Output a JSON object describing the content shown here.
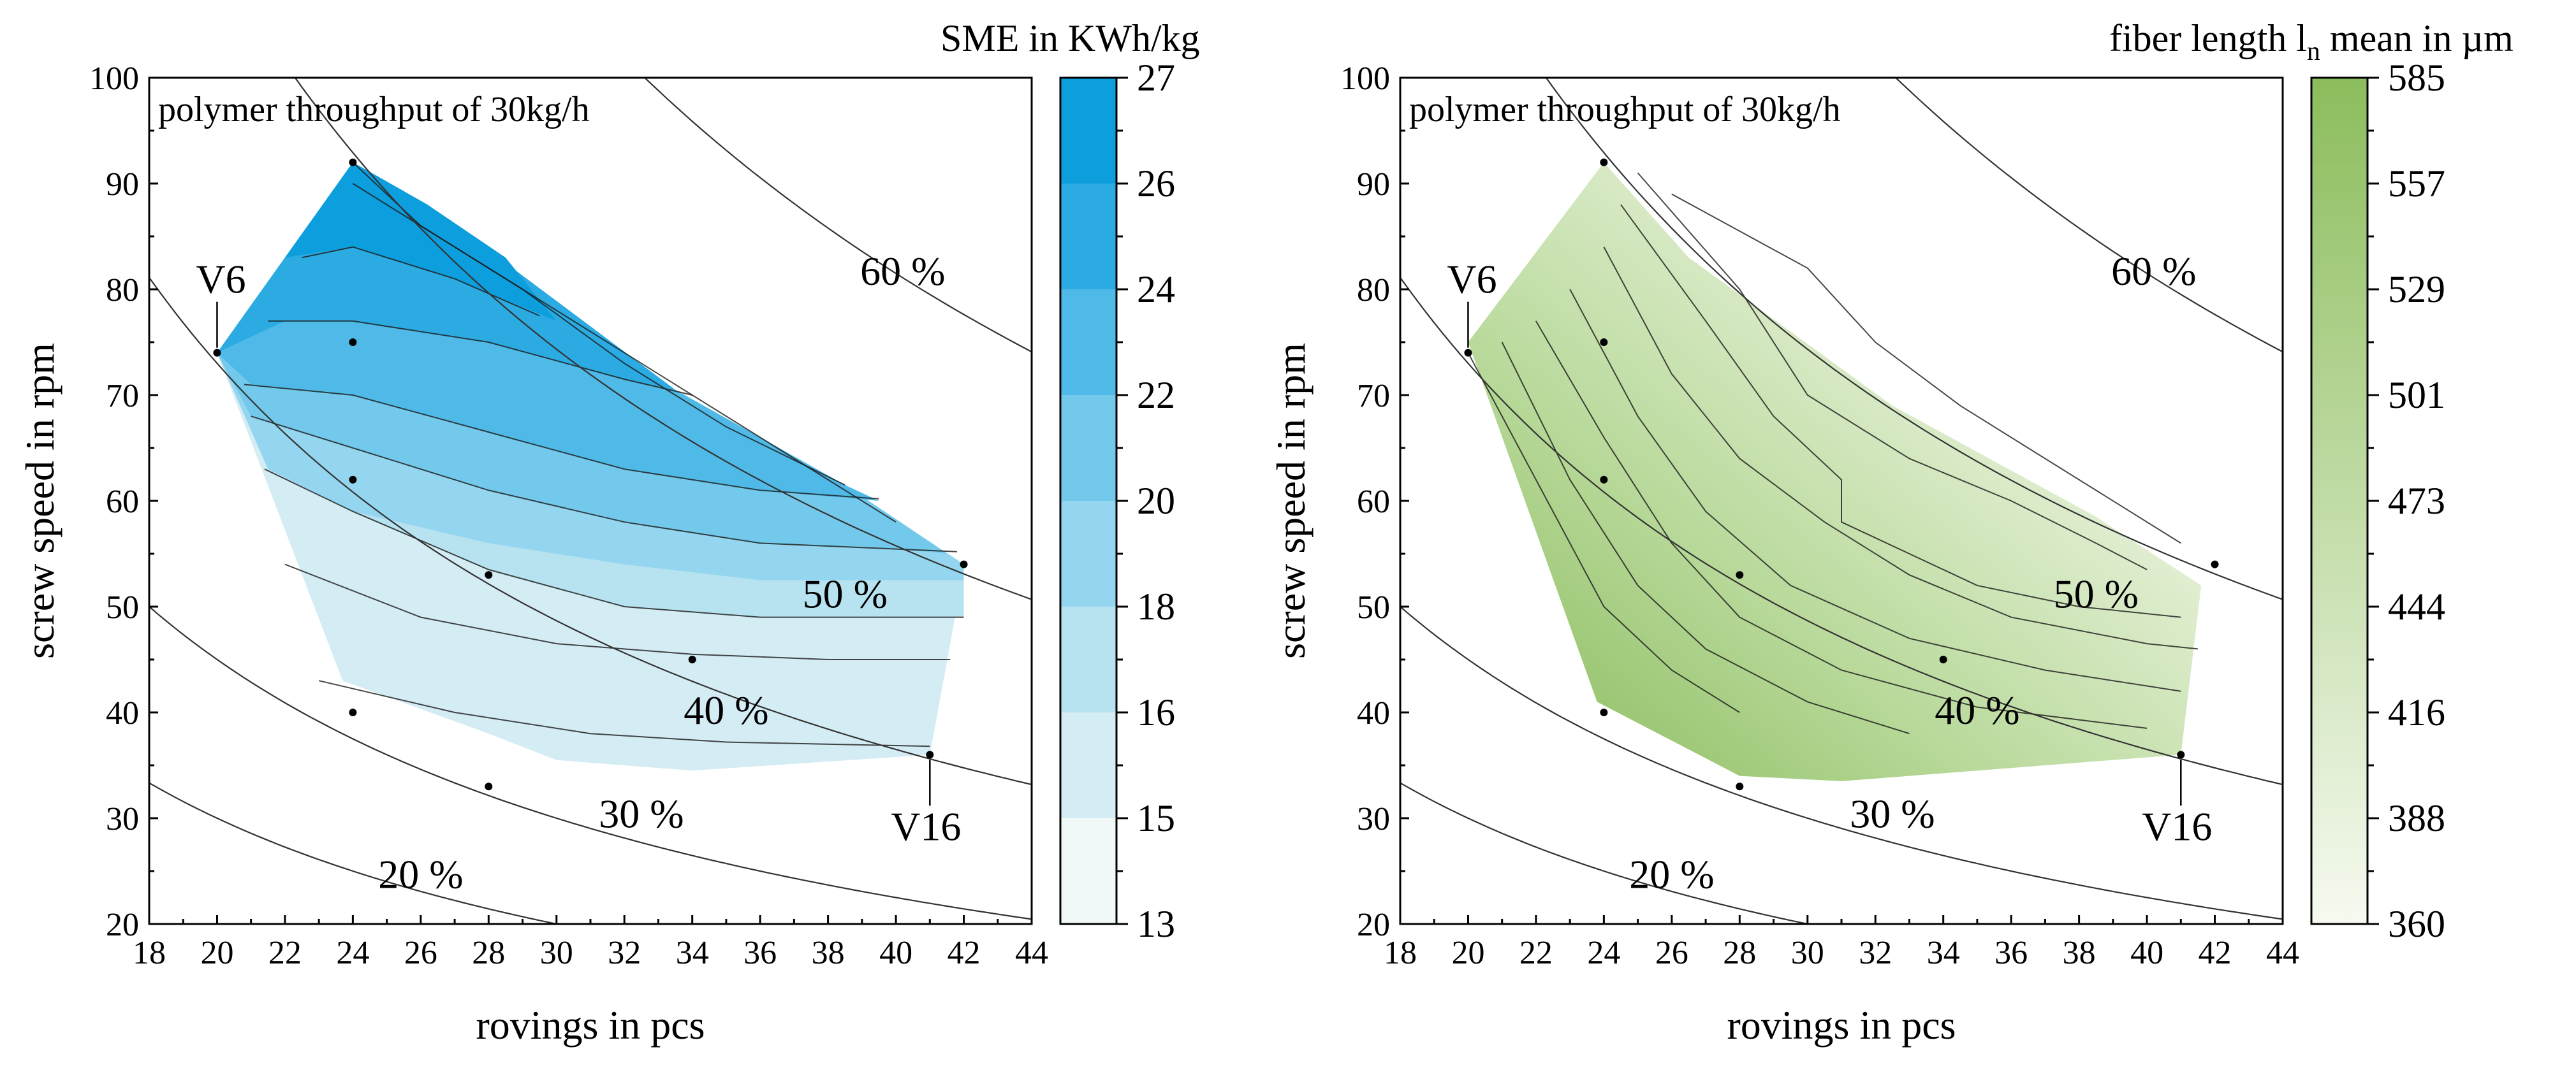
{
  "chart_data": [
    {
      "type": "contour",
      "title": "SME in KWh/kg",
      "annotation": "polymer throughput of 30kg/h",
      "xlabel": "rovings in pcs",
      "ylabel": "screw speed in rpm",
      "xlim": [
        18,
        44
      ],
      "ylim": [
        20,
        100
      ],
      "xticks": [
        "18",
        "20",
        "22",
        "24",
        "26",
        "28",
        "30",
        "32",
        "34",
        "36",
        "38",
        "40",
        "42",
        "44"
      ],
      "yticks": [
        "20",
        "30",
        "40",
        "50",
        "60",
        "70",
        "80",
        "90",
        "100"
      ],
      "colorbar": {
        "ticks": [
          "13",
          "15",
          "16",
          "18",
          "20",
          "22",
          "24",
          "26",
          "27"
        ],
        "colors": [
          "#f1f8f8",
          "#d4ecf4",
          "#b7e2f0",
          "#94d6ef",
          "#73c9ec",
          "#4fbae7",
          "#2cabe2",
          "#0d9edd"
        ]
      },
      "hull": [
        [
          24,
          92
        ],
        [
          20,
          74
        ],
        [
          23.7,
          43
        ],
        [
          28,
          38
        ],
        [
          30,
          35.5
        ],
        [
          34,
          34.5
        ],
        [
          41,
          36
        ],
        [
          41.8,
          50
        ],
        [
          42,
          54
        ],
        [
          38.5,
          61.5
        ],
        [
          33.5,
          70.5
        ],
        [
          26.2,
          88
        ]
      ],
      "points": [
        [
          24,
          92
        ],
        [
          20,
          74
        ],
        [
          24,
          75
        ],
        [
          24,
          62
        ],
        [
          28,
          53
        ],
        [
          42,
          54
        ],
        [
          34,
          45
        ],
        [
          24,
          40
        ],
        [
          28,
          33
        ],
        [
          41,
          36
        ]
      ],
      "point_labels": [
        {
          "text": "V6",
          "x": 20,
          "y": 74
        },
        {
          "text": "V16",
          "x": 41,
          "y": 36
        }
      ],
      "iso_lines": [
        {
          "label": "20 %",
          "k": 600
        },
        {
          "label": "30 %",
          "k": 900
        },
        {
          "label": "40 %",
          "k": 1460
        },
        {
          "label": "50 %",
          "k": 2230
        },
        {
          "label": "60 %",
          "k": 3260
        }
      ]
    },
    {
      "type": "contour",
      "title": "fiber length l",
      "title_subscript": "n",
      "title_suffix": " mean in µm",
      "annotation": "polymer throughput of 30kg/h",
      "xlabel": "rovings in pcs",
      "ylabel": "screw speed in rpm",
      "xlim": [
        18,
        44
      ],
      "ylim": [
        20,
        100
      ],
      "xticks": [
        "18",
        "20",
        "22",
        "24",
        "26",
        "28",
        "30",
        "32",
        "34",
        "36",
        "38",
        "40",
        "42",
        "44"
      ],
      "yticks": [
        "20",
        "30",
        "40",
        "50",
        "60",
        "70",
        "80",
        "90",
        "100"
      ],
      "colorbar": {
        "ticks": [
          "360",
          "388",
          "416",
          "444",
          "473",
          "501",
          "529",
          "557",
          "585"
        ],
        "colors": [
          "#f6faf0",
          "#8cbd5c"
        ]
      },
      "hull": [
        [
          24,
          92
        ],
        [
          20,
          75
        ],
        [
          23.8,
          41
        ],
        [
          28,
          34
        ],
        [
          31,
          33.5
        ],
        [
          41,
          36
        ],
        [
          41.6,
          52
        ],
        [
          38.5,
          58.5
        ],
        [
          32.5,
          69
        ],
        [
          26.5,
          83
        ]
      ],
      "points": [
        [
          24,
          92
        ],
        [
          20,
          74
        ],
        [
          24,
          75
        ],
        [
          24,
          62
        ],
        [
          28,
          53
        ],
        [
          42,
          54
        ],
        [
          34,
          45
        ],
        [
          24,
          40
        ],
        [
          28,
          33
        ],
        [
          41,
          36
        ]
      ],
      "point_labels": [
        {
          "text": "V6",
          "x": 20,
          "y": 74
        },
        {
          "text": "V16",
          "x": 41,
          "y": 36
        }
      ],
      "iso_lines": [
        {
          "label": "20 %",
          "k": 600
        },
        {
          "label": "30 %",
          "k": 900
        },
        {
          "label": "40 %",
          "k": 1460
        },
        {
          "label": "50 %",
          "k": 2230
        },
        {
          "label": "60 %",
          "k": 3260
        }
      ]
    }
  ]
}
